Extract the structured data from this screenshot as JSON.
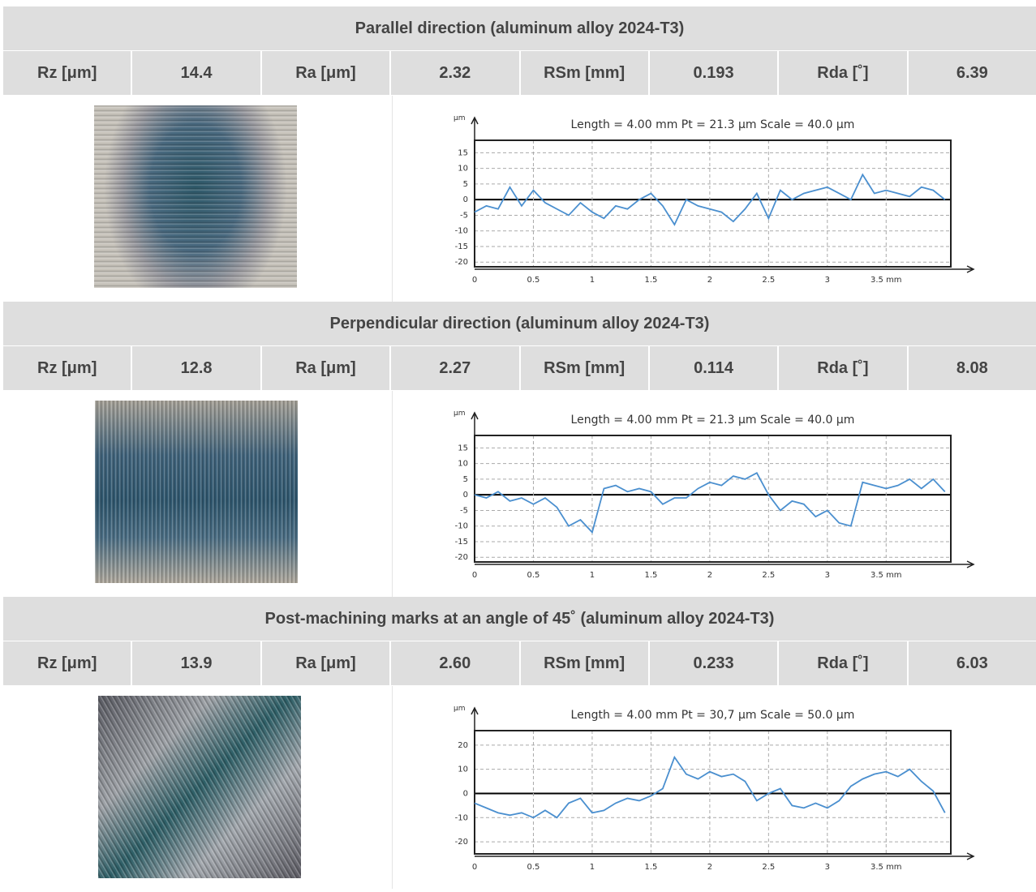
{
  "sections": [
    {
      "title": "Parallel direction (aluminum alloy 2024-T3)",
      "measurements": [
        {
          "label": "Rz [μm]",
          "value": "14.4"
        },
        {
          "label": "Ra [μm]",
          "value": "2.32"
        },
        {
          "label": "RSm [mm]",
          "value": "0.193"
        },
        {
          "label": "Rda [˚]",
          "value": "6.39"
        }
      ],
      "profile": {
        "title": "Length = 4.00 mm  Pt = 21.3 μm  Scale = 40.0 μm",
        "y_unit": "μm",
        "color": "#4a8fcf",
        "x": [
          0,
          0.1,
          0.2,
          0.3,
          0.4,
          0.5,
          0.6,
          0.7,
          0.8,
          0.9,
          1,
          1.1,
          1.2,
          1.3,
          1.4,
          1.5,
          1.6,
          1.7,
          1.8,
          1.9,
          2,
          2.1,
          2.2,
          2.3,
          2.4,
          2.5,
          2.6,
          2.7,
          2.8,
          2.9,
          3,
          3.1,
          3.2,
          3.3,
          3.4,
          3.5,
          3.6,
          3.7,
          3.8,
          3.9,
          4
        ],
        "values": [
          -4,
          -2,
          -3,
          4,
          -2,
          3,
          -1,
          -3,
          -5,
          -1,
          -4,
          -6,
          -2,
          -3,
          0,
          2,
          -2,
          -8,
          0,
          -2,
          -3,
          -4,
          -7,
          -3,
          2,
          -6,
          3,
          0,
          2,
          3,
          4,
          2,
          0,
          8,
          2,
          3,
          2,
          1,
          4,
          3,
          0
        ],
        "xlim": [
          0,
          4.05
        ],
        "ylim": [
          -21.5,
          19
        ],
        "xticks": [
          0,
          0.5,
          1,
          1.5,
          2,
          2.5,
          3,
          {
            "value": 3.5,
            "label": "3.5 mm"
          }
        ],
        "yticks": [
          15,
          10,
          5,
          0,
          -5,
          -10,
          -15,
          -20
        ]
      }
    },
    {
      "title": "Perpendicular direction (aluminum alloy 2024-T3)",
      "measurements": [
        {
          "label": "Rz [μm]",
          "value": "12.8"
        },
        {
          "label": "Ra [μm]",
          "value": "2.27"
        },
        {
          "label": "RSm [mm]",
          "value": "0.114"
        },
        {
          "label": "Rda [˚]",
          "value": "8.08"
        }
      ],
      "profile": {
        "title": "Length = 4.00 mm  Pt = 21.3 μm  Scale = 40.0 μm",
        "y_unit": "μm",
        "color": "#4a8fcf",
        "x": [
          0,
          0.1,
          0.2,
          0.3,
          0.4,
          0.5,
          0.6,
          0.7,
          0.8,
          0.9,
          1,
          1.1,
          1.2,
          1.3,
          1.4,
          1.5,
          1.6,
          1.7,
          1.8,
          1.9,
          2,
          2.1,
          2.2,
          2.3,
          2.4,
          2.5,
          2.6,
          2.7,
          2.8,
          2.9,
          3,
          3.1,
          3.2,
          3.3,
          3.4,
          3.5,
          3.6,
          3.7,
          3.8,
          3.9,
          4
        ],
        "values": [
          0,
          -1,
          1,
          -2,
          -1,
          -3,
          -1,
          -4,
          -10,
          -8,
          -12,
          2,
          3,
          1,
          2,
          1,
          -3,
          -1,
          -1,
          2,
          4,
          3,
          6,
          5,
          7,
          0,
          -5,
          -2,
          -3,
          -7,
          -5,
          -9,
          -10,
          4,
          3,
          2,
          3,
          5,
          2,
          5,
          1
        ],
        "xlim": [
          0,
          4.05
        ],
        "ylim": [
          -21.5,
          19
        ],
        "xticks": [
          0,
          0.5,
          1,
          1.5,
          2,
          2.5,
          3,
          {
            "value": 3.5,
            "label": "3.5 mm"
          }
        ],
        "yticks": [
          15,
          10,
          5,
          0,
          -5,
          -10,
          -15,
          -20
        ]
      }
    },
    {
      "title": "Post-machining marks at an angle of 45˚ (aluminum alloy 2024-T3)",
      "measurements": [
        {
          "label": "Rz [μm]",
          "value": "13.9"
        },
        {
          "label": "Ra [μm]",
          "value": "2.60"
        },
        {
          "label": "RSm [mm]",
          "value": "0.233"
        },
        {
          "label": "Rda [˚]",
          "value": "6.03"
        }
      ],
      "profile": {
        "title": "Length = 4.00 mm  Pt = 30,7 μm  Scale = 50.0 μm",
        "y_unit": "μm",
        "color": "#4a8fcf",
        "x": [
          0,
          0.1,
          0.2,
          0.3,
          0.4,
          0.5,
          0.6,
          0.7,
          0.8,
          0.9,
          1,
          1.1,
          1.2,
          1.3,
          1.4,
          1.5,
          1.6,
          1.7,
          1.8,
          1.9,
          2,
          2.1,
          2.2,
          2.3,
          2.4,
          2.5,
          2.6,
          2.7,
          2.8,
          2.9,
          3,
          3.1,
          3.2,
          3.3,
          3.4,
          3.5,
          3.6,
          3.7,
          3.8,
          3.9,
          4
        ],
        "values": [
          -4,
          -6,
          -8,
          -9,
          -8,
          -10,
          -7,
          -10,
          -4,
          -2,
          -8,
          -7,
          -4,
          -2,
          -3,
          -1,
          2,
          15,
          8,
          6,
          9,
          7,
          8,
          5,
          -3,
          0,
          2,
          -5,
          -6,
          -4,
          -6,
          -3,
          3,
          6,
          8,
          9,
          7,
          10,
          5,
          1,
          -8
        ],
        "xlim": [
          0,
          4.05
        ],
        "ylim": [
          -25,
          26
        ],
        "xticks": [
          0,
          0.5,
          1,
          1.5,
          2,
          2.5,
          3,
          {
            "value": 3.5,
            "label": "3.5 mm"
          }
        ],
        "yticks": [
          20,
          10,
          0,
          -10,
          -20
        ]
      }
    }
  ]
}
